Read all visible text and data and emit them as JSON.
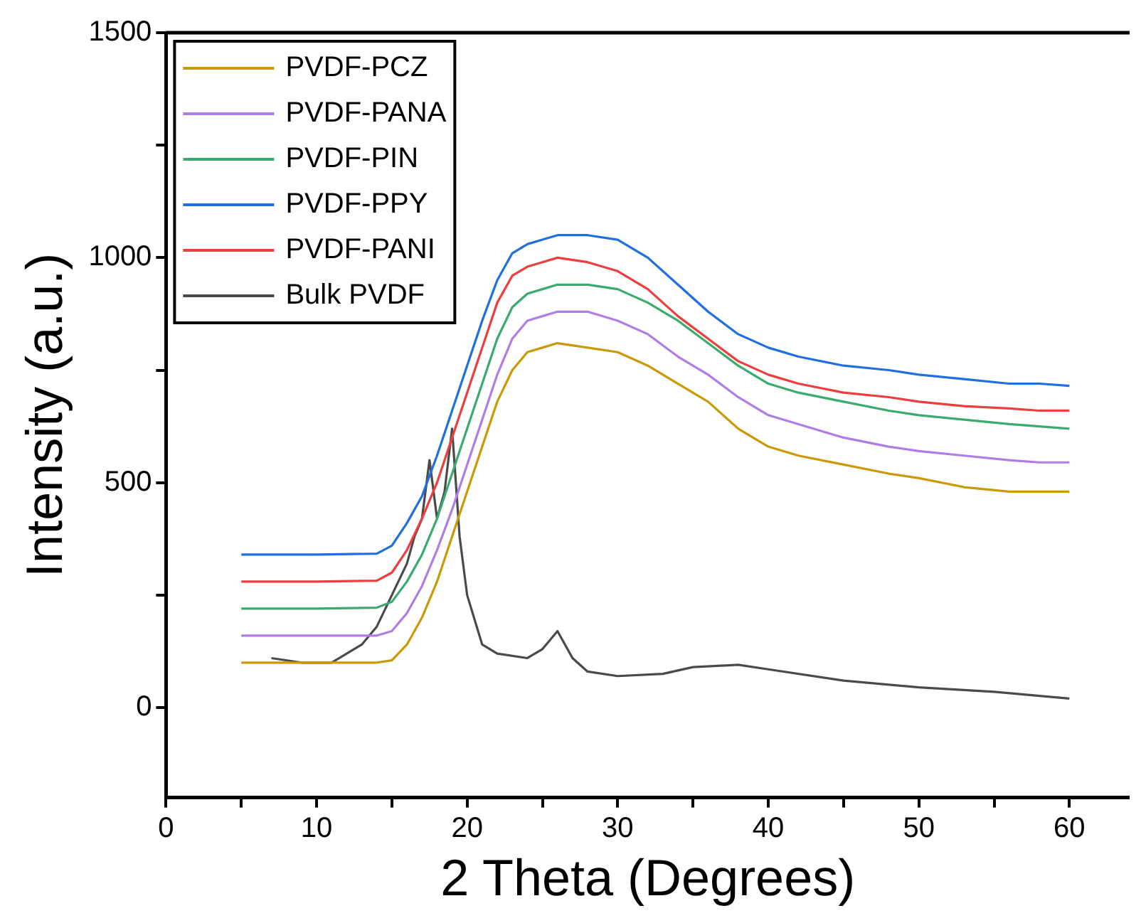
{
  "chart_data": {
    "type": "line",
    "xlabel": "2 Theta (Degrees)",
    "ylabel": "Intensity (a.u.)",
    "x": [
      5,
      10,
      14,
      15,
      16,
      17,
      18,
      19,
      20,
      21,
      22,
      23,
      24,
      25,
      26,
      28,
      30,
      32,
      34,
      36,
      38,
      40,
      42,
      45,
      48,
      50,
      53,
      56,
      58,
      60
    ],
    "series": [
      {
        "name": "PVDF-PCZ",
        "color": "#c99a06",
        "values": [
          100,
          100,
          100,
          105,
          140,
          200,
          280,
          380,
          480,
          580,
          680,
          750,
          790,
          800,
          810,
          800,
          790,
          760,
          720,
          680,
          620,
          580,
          560,
          540,
          520,
          510,
          490,
          480,
          480,
          480
        ]
      },
      {
        "name": "PVDF-PANA",
        "color": "#b07ce6",
        "values": [
          160,
          160,
          160,
          170,
          210,
          270,
          350,
          440,
          540,
          640,
          740,
          820,
          860,
          870,
          880,
          880,
          860,
          830,
          780,
          740,
          690,
          650,
          630,
          600,
          580,
          570,
          560,
          550,
          545,
          545
        ]
      },
      {
        "name": "PVDF-PIN",
        "color": "#3aab6e",
        "values": [
          220,
          220,
          222,
          235,
          280,
          340,
          420,
          520,
          620,
          720,
          820,
          890,
          920,
          930,
          940,
          940,
          930,
          900,
          860,
          810,
          760,
          720,
          700,
          680,
          660,
          650,
          640,
          630,
          625,
          620
        ]
      },
      {
        "name": "PVDF-PPY",
        "color": "#1f6fe0",
        "values": [
          340,
          340,
          342,
          360,
          410,
          470,
          560,
          660,
          760,
          860,
          950,
          1010,
          1030,
          1040,
          1050,
          1050,
          1040,
          1000,
          940,
          880,
          830,
          800,
          780,
          760,
          750,
          740,
          730,
          720,
          720,
          715
        ]
      },
      {
        "name": "PVDF-PANI",
        "color": "#ee3d3d",
        "values": [
          280,
          280,
          282,
          300,
          350,
          420,
          500,
          600,
          700,
          800,
          900,
          960,
          980,
          990,
          1000,
          990,
          970,
          930,
          870,
          820,
          770,
          740,
          720,
          700,
          690,
          680,
          670,
          665,
          660,
          660
        ]
      },
      {
        "name": "Bulk PVDF",
        "color": "#4a4a4a",
        "x": [
          7,
          9,
          11,
          13,
          14,
          15,
          16,
          16.5,
          17,
          17.5,
          18,
          18.5,
          19,
          19.5,
          20,
          21,
          22,
          24,
          25,
          26,
          27,
          28,
          30,
          33,
          35,
          38,
          40,
          45,
          50,
          55,
          60
        ],
        "values": [
          110,
          100,
          100,
          140,
          180,
          250,
          320,
          380,
          420,
          550,
          420,
          480,
          620,
          380,
          250,
          140,
          120,
          110,
          130,
          170,
          110,
          80,
          70,
          75,
          90,
          95,
          85,
          60,
          45,
          35,
          20
        ]
      }
    ],
    "xlim": [
      0,
      64
    ],
    "xticks": [
      0,
      {
        "value": 5,
        "label": null
      },
      10,
      {
        "value": 15,
        "label": null
      },
      20,
      {
        "value": 25,
        "label": null
      },
      30,
      {
        "value": 35,
        "label": null
      },
      40,
      {
        "value": 45,
        "label": null
      },
      50,
      {
        "value": 55,
        "label": null
      },
      60
    ],
    "ylim": [
      -200,
      1500
    ],
    "yticks": [
      0,
      {
        "value": 250,
        "label": null
      },
      500,
      {
        "value": 750,
        "label": null
      },
      1000,
      {
        "value": 1250,
        "label": null
      },
      1500
    ],
    "grid": false,
    "legend": "top left",
    "marker": "none",
    "line_style": "solid"
  }
}
